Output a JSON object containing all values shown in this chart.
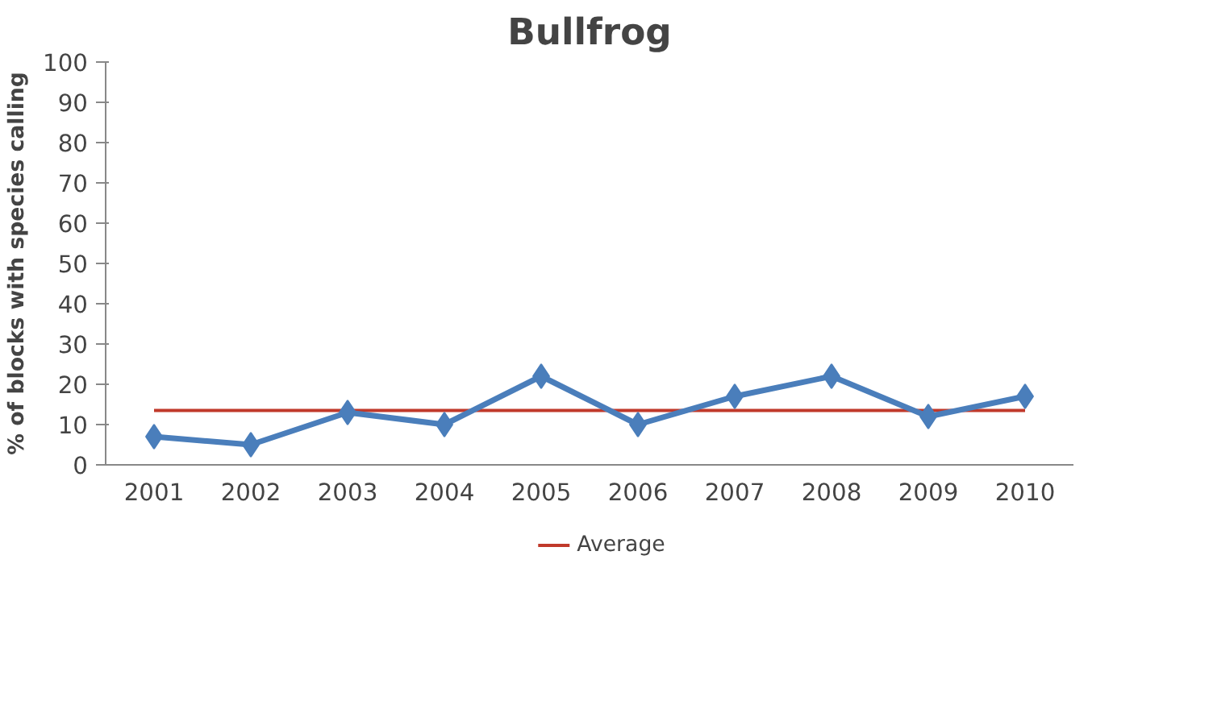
{
  "chart_data": {
    "type": "line",
    "title": "Bullfrog",
    "ylabel": "% of blocks with species calling",
    "categories": [
      "2001",
      "2002",
      "2003",
      "2004",
      "2005",
      "2006",
      "2007",
      "2008",
      "2009",
      "2010"
    ],
    "series": [
      {
        "color": "#4a7ebb",
        "values": [
          7,
          5,
          13,
          10,
          22,
          10,
          17,
          22,
          12,
          17
        ]
      }
    ],
    "ref_lines": [
      {
        "axis": "y",
        "value": 13.5,
        "label": "Average",
        "color": "#c0392b"
      }
    ],
    "ylim": [
      0,
      100
    ],
    "yticks": [
      0,
      10,
      20,
      30,
      40,
      50,
      60,
      70,
      80,
      90,
      100
    ],
    "marker": "diamond",
    "grid": false,
    "legend": "bottom"
  }
}
